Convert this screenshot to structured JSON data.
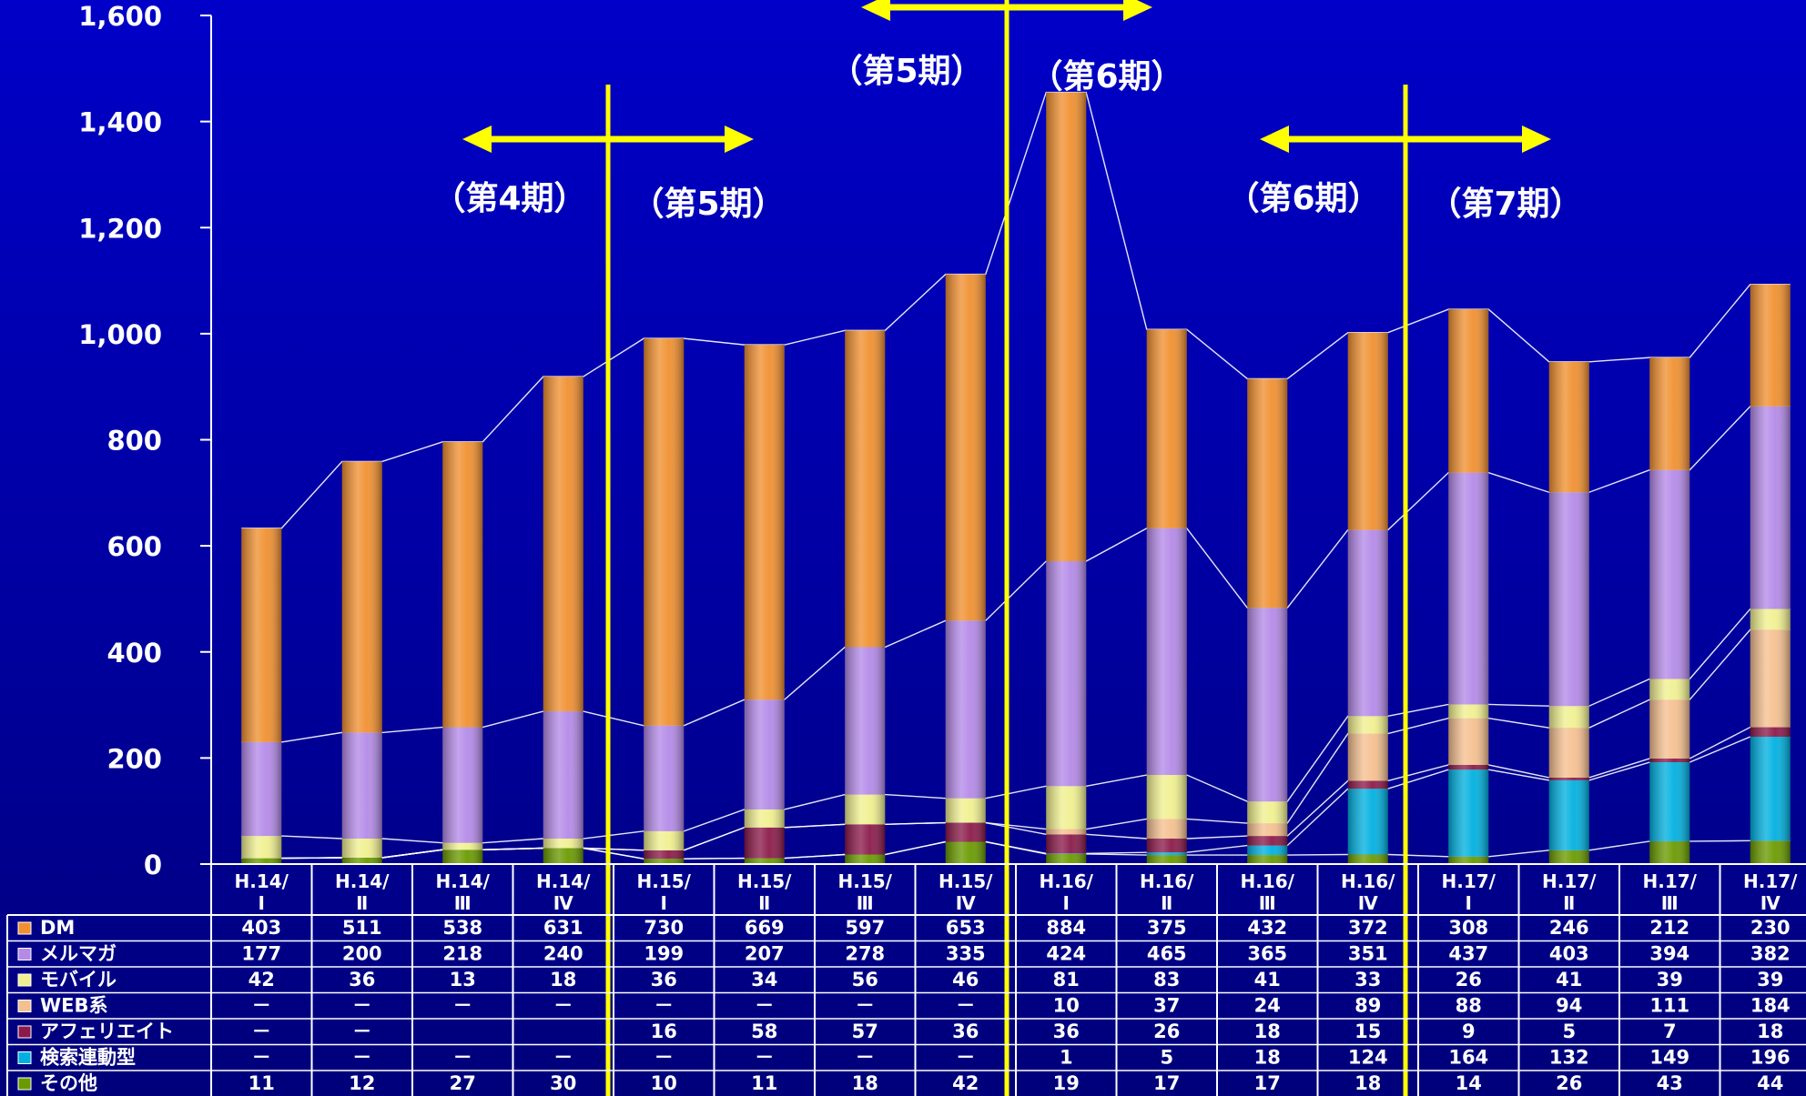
{
  "chart_data": {
    "type": "bar",
    "stacked": true,
    "title": "",
    "xlabel": "",
    "ylabel": "",
    "ylim": [
      0,
      1600
    ],
    "yticks": [
      "0",
      "200",
      "400",
      "600",
      "800",
      "1,000",
      "1,200",
      "1,400",
      "1,600"
    ],
    "categories": [
      {
        "top": "H.14/",
        "bottom": "Ⅰ"
      },
      {
        "top": "H.14/",
        "bottom": "Ⅱ"
      },
      {
        "top": "H.14/",
        "bottom": "Ⅲ"
      },
      {
        "top": "H.14/",
        "bottom": "Ⅳ"
      },
      {
        "top": "H.15/",
        "bottom": "Ⅰ"
      },
      {
        "top": "H.15/",
        "bottom": "Ⅱ"
      },
      {
        "top": "H.15/",
        "bottom": "Ⅲ"
      },
      {
        "top": "H.15/",
        "bottom": "Ⅳ"
      },
      {
        "top": "H.16/",
        "bottom": "Ⅰ"
      },
      {
        "top": "H.16/",
        "bottom": "Ⅱ"
      },
      {
        "top": "H.16/",
        "bottom": "Ⅲ"
      },
      {
        "top": "H.16/",
        "bottom": "Ⅳ"
      },
      {
        "top": "H.17/",
        "bottom": "Ⅰ"
      },
      {
        "top": "H.17/",
        "bottom": "Ⅱ"
      },
      {
        "top": "H.17/",
        "bottom": "Ⅲ"
      },
      {
        "top": "H.17/",
        "bottom": "Ⅳ"
      }
    ],
    "series": [
      {
        "name": "その他",
        "color": "#6a9a00",
        "values": [
          11,
          12,
          27,
          30,
          10,
          11,
          18,
          42,
          19,
          17,
          17,
          18,
          14,
          26,
          43,
          44
        ],
        "labels": [
          "11",
          "12",
          "27",
          "30",
          "10",
          "11",
          "18",
          "42",
          "19",
          "17",
          "17",
          "18",
          "14",
          "26",
          "43",
          "44"
        ]
      },
      {
        "name": "検索連動型",
        "color": "#00b0e0",
        "values": [
          0,
          0,
          0,
          0,
          0,
          0,
          0,
          0,
          1,
          5,
          18,
          124,
          164,
          132,
          149,
          196
        ],
        "labels": [
          "－",
          "－",
          "－",
          "－",
          "－",
          "－",
          "－",
          "－",
          "1",
          "5",
          "18",
          "124",
          "164",
          "132",
          "149",
          "196"
        ]
      },
      {
        "name": "アフェリエイト",
        "color": "#8b1a4a",
        "values": [
          0,
          0,
          0,
          0,
          16,
          58,
          57,
          36,
          36,
          26,
          18,
          15,
          9,
          5,
          7,
          18
        ],
        "labels": [
          "－",
          "－",
          "",
          "",
          "16",
          "58",
          "57",
          "36",
          "36",
          "26",
          "18",
          "15",
          "9",
          "5",
          "7",
          "18"
        ]
      },
      {
        "name": "WEB系",
        "color": "#f5c090",
        "values": [
          0,
          0,
          0,
          0,
          0,
          0,
          0,
          0,
          10,
          37,
          24,
          89,
          88,
          94,
          111,
          184
        ],
        "labels": [
          "－",
          "－",
          "－",
          "－",
          "－",
          "－",
          "－",
          "－",
          "10",
          "37",
          "24",
          "89",
          "88",
          "94",
          "111",
          "184"
        ]
      },
      {
        "name": "モバイル",
        "color": "#f0f090",
        "values": [
          42,
          36,
          13,
          18,
          36,
          34,
          56,
          46,
          81,
          83,
          41,
          33,
          26,
          41,
          39,
          39
        ],
        "labels": [
          "42",
          "36",
          "13",
          "18",
          "36",
          "34",
          "56",
          "46",
          "81",
          "83",
          "41",
          "33",
          "26",
          "41",
          "39",
          "39"
        ]
      },
      {
        "name": "メルマガ",
        "color": "#b48ae8",
        "values": [
          177,
          200,
          218,
          240,
          199,
          207,
          278,
          335,
          424,
          465,
          365,
          351,
          437,
          403,
          394,
          382
        ],
        "labels": [
          "177",
          "200",
          "218",
          "240",
          "199",
          "207",
          "278",
          "335",
          "424",
          "465",
          "365",
          "351",
          "437",
          "403",
          "394",
          "382"
        ]
      },
      {
        "name": "DM",
        "color": "#f09030",
        "values": [
          403,
          511,
          538,
          631,
          730,
          669,
          597,
          653,
          884,
          375,
          432,
          372,
          308,
          246,
          212,
          230
        ],
        "labels": [
          "403",
          "511",
          "538",
          "631",
          "730",
          "669",
          "597",
          "653",
          "884",
          "375",
          "432",
          "372",
          "308",
          "246",
          "212",
          "230"
        ]
      }
    ],
    "table_row_order": [
      "DM",
      "メルマガ",
      "モバイル",
      "WEB系",
      "アフェリエイト",
      "検索連動型",
      "その他"
    ],
    "annotations": {
      "dividers": [
        {
          "after_category_index": 3,
          "left_label": "（第4期）",
          "right_label": "（第5期）"
        },
        {
          "after_category_index": 7,
          "left_label": "（第5期）",
          "right_label": "（第6期）"
        },
        {
          "after_category_index": 11,
          "left_label": "（第6期）",
          "right_label": "（第7期）"
        }
      ],
      "color": "#ffff00"
    },
    "legend_placement": "data-table-left",
    "grid": false
  }
}
